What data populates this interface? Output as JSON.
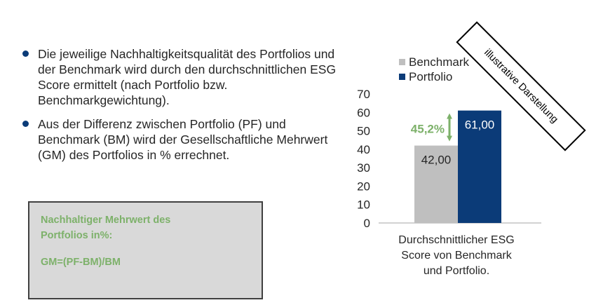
{
  "bullets": [
    "Die jeweilige Nachhaltigkeitsqualität des Portfolios und der Benchmark wird durch den durchschnittlichen ESG Score ermittelt (nach Portfolio bzw. Benchmarkgewichtung).",
    "Aus der Differenz zwischen Portfolio (PF) und Benchmark (BM) wird der Gesellschaftliche Mehrwert (GM) des Portfolios in % errechnet."
  ],
  "formula_box": {
    "title_line1": "Nachhaltiger Mehrwert des",
    "title_line2": "Portfolios in%:",
    "formula": "GM=(PF-BM)/BM"
  },
  "stamp": "illustrative Darstellung",
  "colors": {
    "benchmark": "#bfbfbf",
    "portfolio": "#0b3b78",
    "accent_green": "#7db16a",
    "bullet": "#0b3b78"
  },
  "chart_data": {
    "type": "bar",
    "categories": [
      "Durchschnittlicher ESG Score von Benchmark und Portfolio."
    ],
    "category_label_lines": [
      "Durchschnittlicher ESG",
      "Score von Benchmark",
      "und Portfolio."
    ],
    "series": [
      {
        "name": "Benchmark",
        "values": [
          42.0
        ],
        "labels": [
          "42,00"
        ]
      },
      {
        "name": "Portfolio",
        "values": [
          61.0
        ],
        "labels": [
          "61,00"
        ]
      }
    ],
    "ylim": [
      0,
      70
    ],
    "yticks": [
      0,
      10,
      20,
      30,
      40,
      50,
      60,
      70
    ],
    "legend_position": "top-left",
    "grid": false,
    "annotation": "45,2%"
  }
}
